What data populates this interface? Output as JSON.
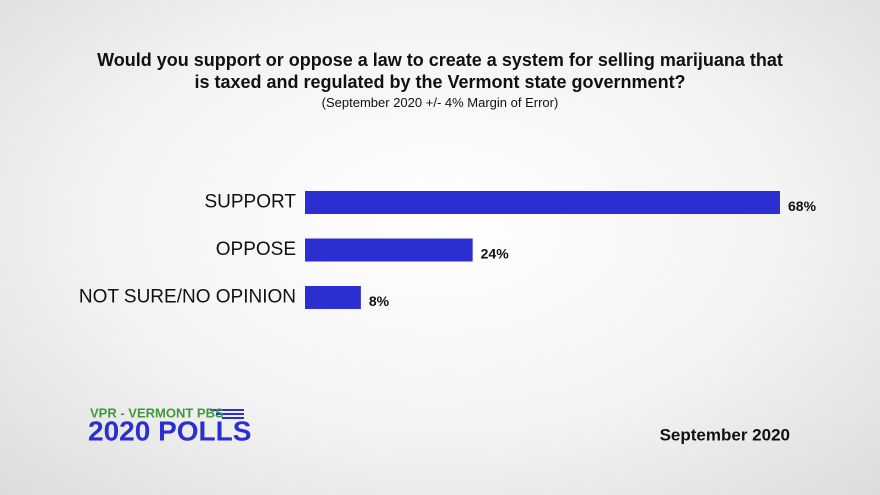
{
  "chart_data": {
    "type": "bar",
    "orientation": "horizontal",
    "title": "Would you support or oppose a law to create a system for selling marijuana that is taxed and regulated by the Vermont state government?",
    "subtitle": "(September 2020 +/- 4% Margin of Error)",
    "categories": [
      "SUPPORT",
      "OPPOSE",
      "NOT SURE/NO OPINION"
    ],
    "values": [
      68,
      24,
      8
    ],
    "value_labels": [
      "68%",
      "24%",
      "8%"
    ],
    "color": "#2b2fcf",
    "logo": {
      "line1": "VPR - VERMONT PBS",
      "line2": "2020 POLLS"
    },
    "date": "September 2020"
  }
}
